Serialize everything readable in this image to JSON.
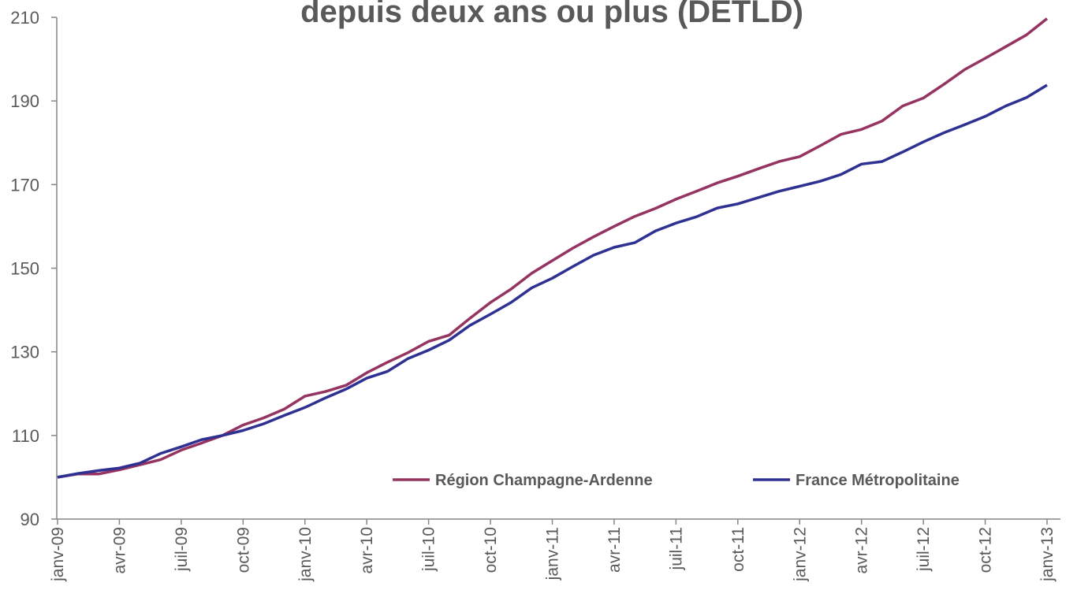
{
  "chart_data": {
    "type": "line",
    "title": "depuis deux ans ou plus (DETLD)",
    "categories": [
      "janv-09",
      null,
      null,
      "avr-09",
      null,
      null,
      "juil-09",
      null,
      null,
      "oct-09",
      null,
      null,
      "janv-10",
      null,
      null,
      "avr-10",
      null,
      null,
      "juil-10",
      null,
      null,
      "oct-10",
      null,
      null,
      "janv-11",
      null,
      null,
      "avr-11",
      null,
      null,
      "juil-11",
      null,
      null,
      "oct-11",
      null,
      null,
      "janv-12",
      null,
      null,
      "avr-12",
      null,
      null,
      "juil-12",
      null,
      null,
      "oct-12",
      null,
      null,
      "janv-13"
    ],
    "series": [
      {
        "name": "Région Champagne-Ardenne",
        "color": "#953461",
        "values": [
          100,
          100.8,
          100.8,
          101.8,
          103,
          104.2,
          106.5,
          108.2,
          110,
          112.5,
          114.2,
          116.3,
          119.4,
          120.5,
          122,
          125,
          127.5,
          129.8,
          132.5,
          134,
          138,
          141.8,
          145,
          148.8,
          151.8,
          154.8,
          157.5,
          160,
          162.4,
          164.3,
          166.5,
          168.4,
          170.4,
          172,
          173.8,
          175.5,
          176.7,
          179.3,
          182,
          183.2,
          185.2,
          188.8,
          190.7,
          194,
          197.5,
          200.2,
          203,
          205.8,
          209.7
        ]
      },
      {
        "name": "France Métropolitaine",
        "color": "#2e3192",
        "values": [
          100,
          100.9,
          101.6,
          102.2,
          103.4,
          105.7,
          107.3,
          109,
          110,
          111.2,
          112.8,
          114.8,
          116.7,
          119,
          121.1,
          123.7,
          125.3,
          128.4,
          130.4,
          132.8,
          136.3,
          139,
          141.8,
          145.3,
          147.6,
          150.4,
          153.1,
          155,
          156.1,
          158.9,
          160.8,
          162.3,
          164.4,
          165.4,
          166.9,
          168.4,
          169.6,
          170.8,
          172.4,
          174.9,
          175.5,
          177.8,
          180.2,
          182.4,
          184.3,
          186.3,
          188.8,
          190.8,
          193.8
        ]
      }
    ],
    "ylim": [
      90,
      210
    ],
    "yticks": [
      90,
      110,
      130,
      150,
      170,
      190,
      210
    ],
    "grid": false,
    "legend": "lower right"
  }
}
